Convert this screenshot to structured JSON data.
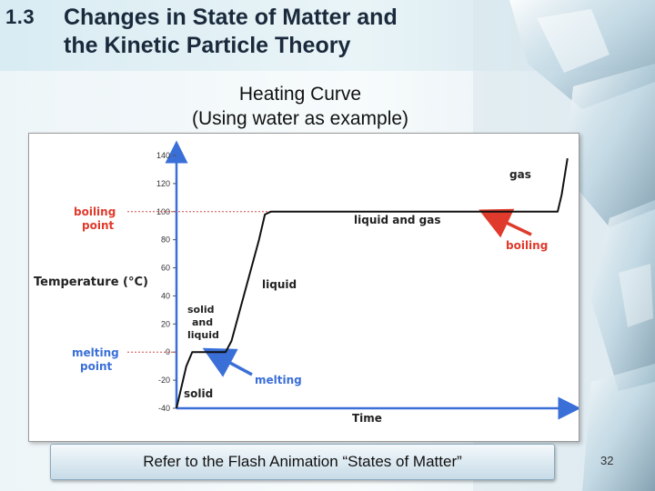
{
  "slide": {
    "section_number": "1.3",
    "title_line1": "Changes in State of Matter and",
    "title_line2": "the Kinetic Particle Theory",
    "subtitle_line1": "Heating Curve",
    "subtitle_line2": "(Using water as example)",
    "footer_button": "Refer to the Flash Animation “States of Matter”",
    "page_number": "32"
  },
  "colors": {
    "title": "#1a2a3c",
    "curve": "#111111",
    "axis_arrow": "#3a6fd8",
    "boiling_annotation": "#e03a2c",
    "melting_annotation": "#3a6fd8",
    "dashed_reference": "#d04a4a"
  },
  "chart_data": {
    "type": "line",
    "xlabel": "Time",
    "ylabel": "Temperature (°C)",
    "ylim": [
      -40,
      140
    ],
    "yticks": [
      -40,
      -20,
      0,
      20,
      40,
      60,
      80,
      100,
      120,
      140
    ],
    "ytick_labels": [
      "-40",
      "-20",
      "0",
      "20",
      "40",
      "60",
      "80",
      "100",
      "120",
      "140"
    ],
    "x_units": "relative time (unlabeled)",
    "xlim": [
      0,
      100
    ],
    "grid": false,
    "series": [
      {
        "x": [
          0,
          2.5,
          4,
          5,
          6,
          12.5,
          14,
          21,
          22.5,
          24,
          97,
          98,
          99.5
        ],
        "y": [
          -40,
          -10,
          0,
          0,
          0,
          0,
          8,
          80,
          98,
          100,
          100,
          112,
          138
        ]
      }
    ],
    "reference_lines": [
      {
        "label_line1": "boiling",
        "label_line2": "point",
        "y": 100
      },
      {
        "label_line1": "melting",
        "label_line2": "point",
        "y": 0
      }
    ],
    "region_labels": {
      "solid": "solid",
      "solid_liquid_line1": "solid",
      "solid_liquid_line2": "and",
      "solid_liquid_line3": "liquid",
      "liquid": "liquid",
      "liquid_gas": "liquid and gas",
      "gas": "gas"
    },
    "annotations": {
      "boiling": "boiling",
      "melting": "melting"
    }
  }
}
